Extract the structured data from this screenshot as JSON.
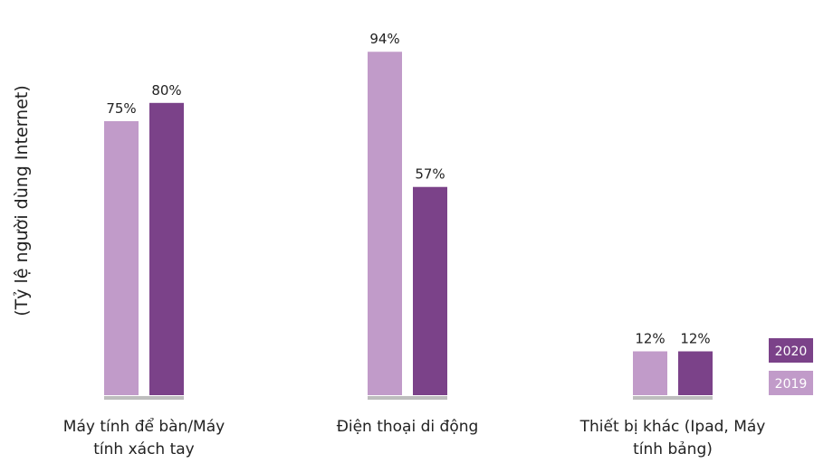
{
  "chart_data": {
    "type": "bar",
    "ylabel": "(Tỷ lệ người dùng Internet)",
    "categories": [
      [
        "Máy tính để bàn/Máy",
        "tính xách tay"
      ],
      [
        "Điện thoại di động"
      ],
      [
        "Thiết bị khác  (Ipad, Máy",
        "tính bảng)"
      ]
    ],
    "series": [
      {
        "name": "2019",
        "color": "#c19bc9",
        "values": [
          75,
          94,
          12
        ],
        "labels": [
          "75%",
          "94%",
          "12%"
        ]
      },
      {
        "name": "2020",
        "color": "#7b4289",
        "values": [
          80,
          57,
          12
        ],
        "labels": [
          "80%",
          "57%",
          "12%"
        ]
      }
    ],
    "ylim": [
      0,
      100
    ],
    "unit": "%",
    "grid": false,
    "legend_position": "bottom-right",
    "baseline_color": "#bdbdbd"
  }
}
